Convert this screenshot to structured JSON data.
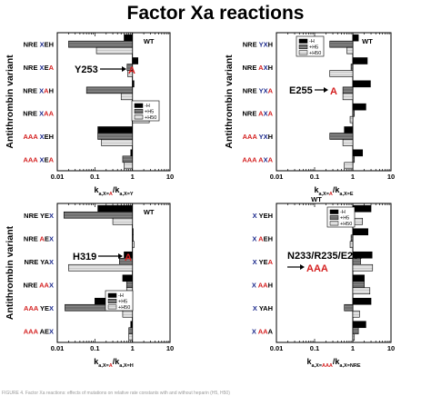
{
  "figure": {
    "title": "Factor Xa reactions",
    "caption": "FIGURE 4. Factor Xa reactions: effects of mutations on relative rate constants with and without heparin (H5, H50)"
  },
  "colors": {
    "series": [
      "#000000",
      "#7a7a7a",
      "#d8d8d8"
    ],
    "mutated_letter": "#d42020",
    "wildtype_letter": "#1c2a8c"
  },
  "legend_labels": [
    "-H",
    "+H5",
    "+H50"
  ],
  "chart_data": [
    {
      "type": "bar",
      "orientation": "horizontal",
      "xscale": "log",
      "xlim": [
        0.01,
        10
      ],
      "x_ticks": [
        "0.01",
        "0.1",
        "1",
        "10"
      ],
      "ylabel": "Antithrombin variant",
      "xlabel": {
        "main": "k",
        "sub1": "a,X=",
        "sub1_red": "A",
        "mid": "/k",
        "sub2": "a,X=Y"
      },
      "annotation": {
        "text": "Y253",
        "red": "A"
      },
      "wt_label": "WT",
      "legend_position": "middle-right",
      "categories": [
        [
          {
            "t": "NRE ",
            "c": "k"
          },
          {
            "t": "X",
            "c": "b"
          },
          {
            "t": "EH",
            "c": "k"
          }
        ],
        [
          {
            "t": "NRE ",
            "c": "k"
          },
          {
            "t": "X",
            "c": "b"
          },
          {
            "t": "E",
            "c": "k"
          },
          {
            "t": "A",
            "c": "r"
          }
        ],
        [
          {
            "t": "NRE ",
            "c": "k"
          },
          {
            "t": "X",
            "c": "b"
          },
          {
            "t": "A",
            "c": "r"
          },
          {
            "t": "H",
            "c": "k"
          }
        ],
        [
          {
            "t": "NRE ",
            "c": "k"
          },
          {
            "t": "X",
            "c": "b"
          },
          {
            "t": "AA",
            "c": "r"
          }
        ],
        [
          {
            "t": "AAA",
            "c": "r"
          },
          {
            "t": " ",
            "c": "k"
          },
          {
            "t": "X",
            "c": "b"
          },
          {
            "t": "EH",
            "c": "k"
          }
        ],
        [
          {
            "t": "AAA",
            "c": "r"
          },
          {
            "t": " ",
            "c": "k"
          },
          {
            "t": "X",
            "c": "b"
          },
          {
            "t": "E",
            "c": "k"
          },
          {
            "t": "A",
            "c": "r"
          }
        ]
      ],
      "series": [
        {
          "name": "-H",
          "values": [
            0.6,
            1.4,
            1.1,
            1.0,
            0.12,
            0.9
          ]
        },
        {
          "name": "+H5",
          "values": [
            0.02,
            0.72,
            0.06,
            1.5,
            0.12,
            0.55
          ]
        },
        {
          "name": "+H50",
          "values": [
            0.11,
            0.75,
            0.5,
            2.8,
            0.15,
            0.6
          ]
        }
      ]
    },
    {
      "type": "bar",
      "orientation": "horizontal",
      "xscale": "log",
      "xlim": [
        0.01,
        10
      ],
      "x_ticks": [
        "0.01",
        "0.1",
        "1",
        "10"
      ],
      "ylabel": "Antithrombin variant",
      "xlabel": {
        "main": "k",
        "sub1": "a,X=",
        "sub1_red": "A",
        "mid": "/k",
        "sub2": "a,X=E"
      },
      "annotation": {
        "text": "E255",
        "red": "A"
      },
      "wt_label": "WT",
      "legend_position": "top-right",
      "categories": [
        [
          {
            "t": "NRE ",
            "c": "k"
          },
          {
            "t": "YX",
            "c": "b"
          },
          {
            "t": "H",
            "c": "k"
          }
        ],
        [
          {
            "t": "NRE ",
            "c": "k"
          },
          {
            "t": "A",
            "c": "r"
          },
          {
            "t": "X",
            "c": "b"
          },
          {
            "t": "H",
            "c": "k"
          }
        ],
        [
          {
            "t": "NRE ",
            "c": "k"
          },
          {
            "t": "YX",
            "c": "b"
          },
          {
            "t": "A",
            "c": "r"
          }
        ],
        [
          {
            "t": "NRE ",
            "c": "k"
          },
          {
            "t": "A",
            "c": "r"
          },
          {
            "t": "X",
            "c": "b"
          },
          {
            "t": "A",
            "c": "r"
          }
        ],
        [
          {
            "t": "AAA",
            "c": "r"
          },
          {
            "t": " ",
            "c": "k"
          },
          {
            "t": "YX",
            "c": "b"
          },
          {
            "t": "H",
            "c": "k"
          }
        ],
        [
          {
            "t": "AAA",
            "c": "r"
          },
          {
            "t": " ",
            "c": "k"
          },
          {
            "t": "A",
            "c": "r"
          },
          {
            "t": "X",
            "c": "b"
          },
          {
            "t": "A",
            "c": "r"
          }
        ]
      ],
      "series": [
        {
          "name": "-H",
          "values": [
            1.4,
            2.4,
            2.9,
            2.2,
            0.6,
            1.8
          ]
        },
        {
          "name": "+H5",
          "values": [
            0.25,
            0.9,
            0.55,
            1.1,
            0.25,
            1.1
          ]
        },
        {
          "name": "+H50",
          "values": [
            0.7,
            0.25,
            0.55,
            0.85,
            0.55,
            0.6
          ]
        }
      ]
    },
    {
      "type": "bar",
      "orientation": "horizontal",
      "xscale": "log",
      "xlim": [
        0.01,
        10
      ],
      "x_ticks": [
        "0.01",
        "0.1",
        "1",
        "10"
      ],
      "ylabel": "Antithrombin variant",
      "xlabel": {
        "main": "k",
        "sub1": "a,X=",
        "sub1_red": "A",
        "mid": "/k",
        "sub2": "a,X=H"
      },
      "annotation": {
        "text": "H319",
        "red": "A"
      },
      "wt_label": "WT",
      "legend_position": "middle-right",
      "categories": [
        [
          {
            "t": "NRE ",
            "c": "k"
          },
          {
            "t": "YE",
            "c": "k"
          },
          {
            "t": "X",
            "c": "b"
          }
        ],
        [
          {
            "t": "NRE ",
            "c": "k"
          },
          {
            "t": "A",
            "c": "r"
          },
          {
            "t": "E",
            "c": "k"
          },
          {
            "t": "X",
            "c": "b"
          }
        ],
        [
          {
            "t": "NRE ",
            "c": "k"
          },
          {
            "t": "YA",
            "c": "k"
          },
          {
            "t": "X",
            "c": "b"
          }
        ],
        [
          {
            "t": "NRE ",
            "c": "k"
          },
          {
            "t": "AA",
            "c": "r"
          },
          {
            "t": "X",
            "c": "b"
          }
        ],
        [
          {
            "t": "AAA",
            "c": "r"
          },
          {
            "t": " ",
            "c": "k"
          },
          {
            "t": "YE",
            "c": "k"
          },
          {
            "t": "X",
            "c": "b"
          }
        ],
        [
          {
            "t": "AAA",
            "c": "r"
          },
          {
            "t": " ",
            "c": "k"
          },
          {
            "t": "AE",
            "c": "k"
          },
          {
            "t": "X",
            "c": "b"
          }
        ]
      ],
      "series": [
        {
          "name": "-H",
          "values": [
            0.12,
            1.0,
            0.6,
            0.55,
            0.1,
            0.9
          ]
        },
        {
          "name": "+H5",
          "values": [
            0.015,
            1.05,
            0.45,
            0.7,
            0.016,
            0.8
          ]
        },
        {
          "name": "+H50",
          "values": [
            0.3,
            1.1,
            0.02,
            0.7,
            0.55,
            0.8
          ]
        }
      ]
    },
    {
      "type": "bar",
      "orientation": "horizontal",
      "xscale": "log",
      "xlim": [
        0.01,
        10
      ],
      "x_ticks": [
        "0.01",
        "0.1",
        "1",
        "10"
      ],
      "ylabel": "",
      "xlabel": {
        "main": "k",
        "sub1": "a,X=",
        "sub1_red": "AAA",
        "mid": "/k",
        "sub2": "a,X=NRE"
      },
      "annotation": {
        "text": "N233/R235/E237",
        "red": "AAA"
      },
      "wt_label": "WT",
      "legend_position": "top-center",
      "categories": [
        [
          {
            "t": "X",
            "c": "b"
          },
          {
            "t": " YEH",
            "c": "k"
          }
        ],
        [
          {
            "t": "X",
            "c": "b"
          },
          {
            "t": " ",
            "c": "k"
          },
          {
            "t": "A",
            "c": "r"
          },
          {
            "t": "EH",
            "c": "k"
          }
        ],
        [
          {
            "t": "X",
            "c": "b"
          },
          {
            "t": " YE",
            "c": "k"
          },
          {
            "t": "A",
            "c": "r"
          }
        ],
        [
          {
            "t": "X",
            "c": "b"
          },
          {
            "t": " ",
            "c": "k"
          },
          {
            "t": "AA",
            "c": "r"
          },
          {
            "t": "H",
            "c": "k"
          }
        ],
        [
          {
            "t": "X",
            "c": "b"
          },
          {
            "t": " YAH",
            "c": "k"
          }
        ],
        [
          {
            "t": "X",
            "c": "b"
          },
          {
            "t": " ",
            "c": "k"
          },
          {
            "t": "AA",
            "c": "r"
          },
          {
            "t": "A",
            "c": "k"
          }
        ]
      ],
      "series": [
        {
          "name": "-H",
          "values": [
            3.0,
            2.5,
            3.2,
            2.0,
            3.0,
            2.2
          ]
        },
        {
          "name": "+H5",
          "values": [
            0.55,
            0.9,
            1.6,
            2.0,
            0.6,
            1.4
          ]
        },
        {
          "name": "+H50",
          "values": [
            1.8,
            0.85,
            3.3,
            2.8,
            1.5,
            1.1
          ]
        }
      ]
    }
  ]
}
